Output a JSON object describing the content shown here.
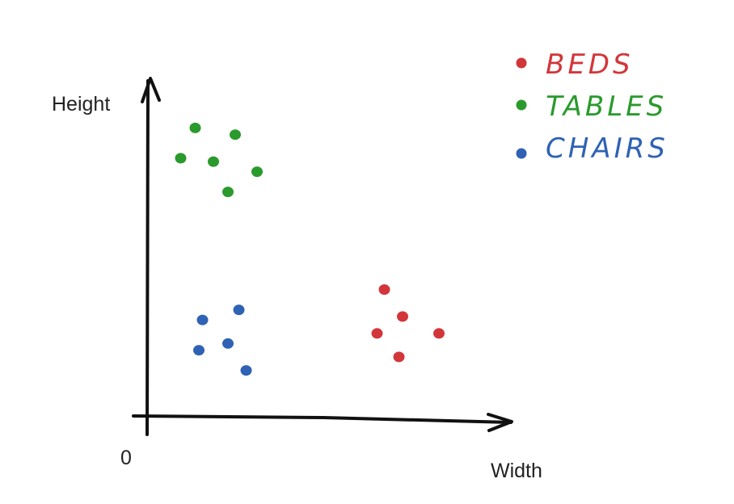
{
  "chart_data": {
    "type": "scatter",
    "xlabel": "Width",
    "ylabel": "Height",
    "origin_label": "0",
    "xlim": [
      0,
      10
    ],
    "ylim": [
      0,
      10
    ],
    "grid": false,
    "legend_position": "top-right",
    "series": [
      {
        "name": "BEDS",
        "color": "#d2363a",
        "x": [
          6.5,
          7.0,
          6.3,
          8.0,
          6.9
        ],
        "y": [
          3.8,
          3.0,
          2.5,
          2.5,
          1.8
        ]
      },
      {
        "name": "TABLES",
        "color": "#2a9a2d",
        "x": [
          1.3,
          2.4,
          0.9,
          1.8,
          3.0,
          2.2
        ],
        "y": [
          8.6,
          8.4,
          7.7,
          7.6,
          7.3,
          6.7
        ]
      },
      {
        "name": "CHAIRS",
        "color": "#2f62b4",
        "x": [
          1.5,
          2.5,
          1.4,
          2.2,
          2.7
        ],
        "y": [
          2.9,
          3.2,
          2.0,
          2.2,
          1.4
        ]
      }
    ]
  }
}
